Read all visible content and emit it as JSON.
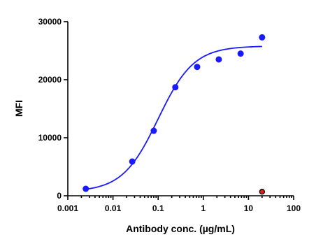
{
  "chart_data": {
    "type": "scatter",
    "x_label": "Antibody conc. (µg/mL)",
    "y_label": "MFI",
    "xscale": "log",
    "xlim": [
      0.001,
      100
    ],
    "xticks": [
      0.001,
      0.01,
      0.1,
      1,
      10,
      100
    ],
    "ylim": [
      0,
      30000
    ],
    "yticks": [
      0,
      10000,
      20000,
      30000
    ],
    "series": [
      {
        "color": "#1a1aff",
        "x": [
          0.0025,
          0.0267,
          0.08,
          0.24,
          0.73,
          2.2,
          6.7,
          20
        ],
        "values": [
          1200,
          5900,
          11200,
          18700,
          22200,
          23500,
          24500,
          27300
        ]
      },
      {
        "color": "#e0201b",
        "x": [
          20
        ],
        "values": [
          700
        ]
      }
    ],
    "fit": {
      "color": "#1a1aff",
      "bottom": 700,
      "top": 25800,
      "ec50": 0.1,
      "hill": 1.1,
      "xrange": [
        0.0025,
        20
      ]
    }
  }
}
